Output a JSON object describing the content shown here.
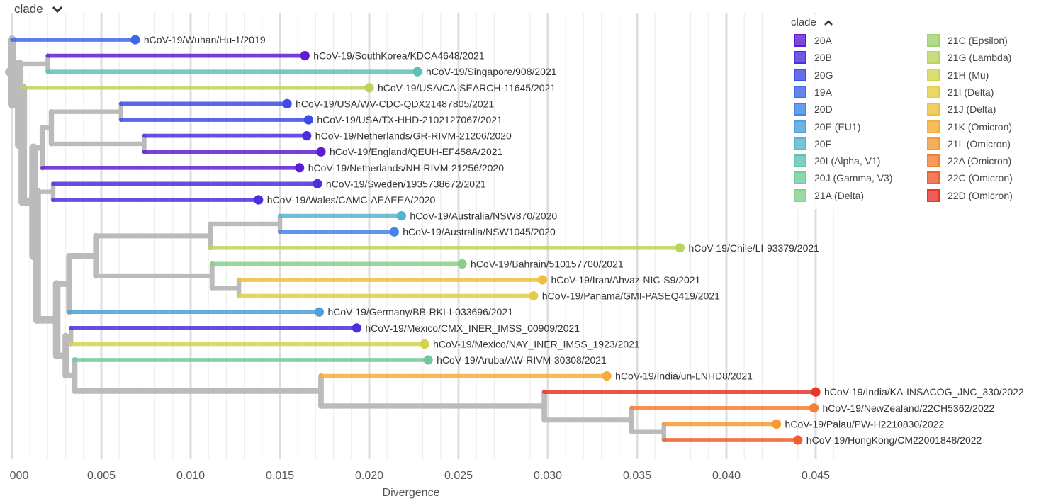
{
  "header": {
    "label": "clade",
    "icon": "chevron-down-icon"
  },
  "legend": {
    "title": "clade",
    "icon": "chevron-up-icon",
    "items": [
      {
        "label": "20A",
        "color": "#5E1DD0"
      },
      {
        "label": "20B",
        "color": "#4B2EDE"
      },
      {
        "label": "20G",
        "color": "#3E4BE6"
      },
      {
        "label": "19A",
        "color": "#3F67E8"
      },
      {
        "label": "20D",
        "color": "#4484E8"
      },
      {
        "label": "20E (EU1)",
        "color": "#4CA0DB"
      },
      {
        "label": "20F",
        "color": "#55B5CB"
      },
      {
        "label": "20I (Alpha, V1)",
        "color": "#62C0B2"
      },
      {
        "label": "20J (Gamma, V3)",
        "color": "#74C89E"
      },
      {
        "label": "21A (Delta)",
        "color": "#88CE88"
      },
      {
        "label": "21C (Epsilon)",
        "color": "#A0D26F"
      },
      {
        "label": "21G (Lambda)",
        "color": "#BAD55E"
      },
      {
        "label": "21H (Mu)",
        "color": "#D1D44F"
      },
      {
        "label": "21I (Delta)",
        "color": "#E4CD45"
      },
      {
        "label": "21J (Delta)",
        "color": "#EFC03E"
      },
      {
        "label": "21K (Omicron)",
        "color": "#F4AE39"
      },
      {
        "label": "21L (Omicron)",
        "color": "#F59A36"
      },
      {
        "label": "22A (Omicron)",
        "color": "#F47F33"
      },
      {
        "label": "22C (Omicron)",
        "color": "#F05D2F"
      },
      {
        "label": "22D (Omicron)",
        "color": "#E8352A"
      }
    ]
  },
  "chart_data": {
    "type": "phylogenetic-tree",
    "xlabel": "Divergence",
    "x_ticks": [
      "000",
      "0.005",
      "0.010",
      "0.015",
      "0.020",
      "0.025",
      "0.030",
      "0.035",
      "0.040",
      "0.045"
    ],
    "x_tick_values": [
      0,
      0.005,
      0.01,
      0.015,
      0.02,
      0.025,
      0.03,
      0.035,
      0.04,
      0.045
    ],
    "xlim": [
      0,
      0.046
    ],
    "grid": "vertical",
    "legend_position": "top-right",
    "tips": [
      {
        "name": "hCoV-19/Wuhan/Hu-1/2019",
        "divergence": 0.0069,
        "clade": "19A"
      },
      {
        "name": "hCoV-19/SouthKorea/KDCA4648/2021",
        "divergence": 0.0164,
        "clade": "20A"
      },
      {
        "name": "hCoV-19/Singapore/908/2021",
        "divergence": 0.0227,
        "clade": "20I (Alpha, V1)"
      },
      {
        "name": "hCoV-19/USA/CA-SEARCH-11645/2021",
        "divergence": 0.02,
        "clade": "21G (Lambda)"
      },
      {
        "name": "hCoV-19/USA/WV-CDC-QDX21487805/2021",
        "divergence": 0.0154,
        "clade": "20G"
      },
      {
        "name": "hCoV-19/USA/TX-HHD-2102127067/2021",
        "divergence": 0.0166,
        "clade": "20G"
      },
      {
        "name": "hCoV-19/Netherlands/GR-RIVM-21206/2020",
        "divergence": 0.0165,
        "clade": "20B"
      },
      {
        "name": "hCoV-19/England/QEUH-EF458A/2021",
        "divergence": 0.0173,
        "clade": "20A"
      },
      {
        "name": "hCoV-19/Netherlands/NH-RIVM-21256/2020",
        "divergence": 0.0161,
        "clade": "20A"
      },
      {
        "name": "hCoV-19/Sweden/1935738672/2021",
        "divergence": 0.0171,
        "clade": "20B"
      },
      {
        "name": "hCoV-19/Wales/CAMC-AEAEEA/2020",
        "divergence": 0.0138,
        "clade": "20B"
      },
      {
        "name": "hCoV-19/Australia/NSW870/2020",
        "divergence": 0.0218,
        "clade": "20F"
      },
      {
        "name": "hCoV-19/Australia/NSW1045/2020",
        "divergence": 0.0214,
        "clade": "20D"
      },
      {
        "name": "hCoV-19/Chile/LI-93379/2021",
        "divergence": 0.0374,
        "clade": "21G (Lambda)"
      },
      {
        "name": "hCoV-19/Bahrain/510157700/2021",
        "divergence": 0.0252,
        "clade": "21A (Delta)"
      },
      {
        "name": "hCoV-19/Iran/Ahvaz-NIC-S9/2021",
        "divergence": 0.0297,
        "clade": "21J (Delta)"
      },
      {
        "name": "hCoV-19/Panama/GMI-PASEQ419/2021",
        "divergence": 0.0292,
        "clade": "21I (Delta)"
      },
      {
        "name": "hCoV-19/Germany/BB-RKI-I-033696/2021",
        "divergence": 0.0172,
        "clade": "20E (EU1)"
      },
      {
        "name": "hCoV-19/Mexico/CMX_INER_IMSS_00909/2021",
        "divergence": 0.0193,
        "clade": "20B"
      },
      {
        "name": "hCoV-19/Mexico/NAY_INER_IMSS_1923/2021",
        "divergence": 0.0231,
        "clade": "21H (Mu)"
      },
      {
        "name": "hCoV-19/Aruba/AW-RIVM-30308/2021",
        "divergence": 0.0233,
        "clade": "20J (Gamma, V3)"
      },
      {
        "name": "hCoV-19/India/un-LNHD8/2021",
        "divergence": 0.0333,
        "clade": "21K (Omicron)"
      },
      {
        "name": "hCoV-19/India/KA-INSACOG_JNC_330/2022",
        "divergence": 0.045,
        "clade": "22D (Omicron)"
      },
      {
        "name": "hCoV-19/NewZealand/22CH5362/2022",
        "divergence": 0.0449,
        "clade": "22A (Omicron)"
      },
      {
        "name": "hCoV-19/Palau/PW-H2210830/2022",
        "divergence": 0.0428,
        "clade": "21L (Omicron)"
      },
      {
        "name": "hCoV-19/HongKong/CM22001848/2022",
        "divergence": 0.044,
        "clade": "22C (Omicron)"
      }
    ],
    "internal_nodes": [
      {
        "id": "n_sk_sg",
        "divergence": 0.002,
        "children": [
          "hCoV-19/SouthKorea/KDCA4648/2021",
          "hCoV-19/Singapore/908/2021"
        ]
      },
      {
        "id": "n_wv_tx",
        "divergence": 0.0061,
        "children": [
          "hCoV-19/USA/WV-CDC-QDX21487805/2021",
          "hCoV-19/USA/TX-HHD-2102127067/2021"
        ]
      },
      {
        "id": "n_nl_en",
        "divergence": 0.0074,
        "children": [
          "hCoV-19/Netherlands/GR-RIVM-21206/2020",
          "hCoV-19/England/QEUH-EF458A/2021"
        ]
      },
      {
        "id": "n_us_block",
        "divergence": 0.0022,
        "children": [
          "n_wv_tx",
          "n_nl_en"
        ]
      },
      {
        "id": "n_us_nl",
        "divergence": 0.0017,
        "children": [
          "n_us_block",
          "hCoV-19/Netherlands/NH-RIVM-21256/2020"
        ]
      },
      {
        "id": "n_se_wa",
        "divergence": 0.0023,
        "children": [
          "hCoV-19/Sweden/1935738672/2021",
          "hCoV-19/Wales/CAMC-AEAEEA/2020"
        ]
      },
      {
        "id": "n_au",
        "divergence": 0.015,
        "children": [
          "hCoV-19/Australia/NSW870/2020",
          "hCoV-19/Australia/NSW1045/2020"
        ]
      },
      {
        "id": "n_au_cl",
        "divergence": 0.0111,
        "children": [
          "n_au",
          "hCoV-19/Chile/LI-93379/2021"
        ]
      },
      {
        "id": "n_ir_pa",
        "divergence": 0.0127,
        "children": [
          "hCoV-19/Iran/Ahvaz-NIC-S9/2021",
          "hCoV-19/Panama/GMI-PASEQ419/2021"
        ]
      },
      {
        "id": "n_bh_ir",
        "divergence": 0.0112,
        "children": [
          "hCoV-19/Bahrain/510157700/2021",
          "n_ir_pa"
        ]
      },
      {
        "id": "n_mid",
        "divergence": 0.0047,
        "children": [
          "n_au_cl",
          "n_bh_ir"
        ]
      },
      {
        "id": "n_mid_de",
        "divergence": 0.0032,
        "children": [
          "n_mid",
          "hCoV-19/Germany/BB-RKI-I-033696/2021"
        ]
      },
      {
        "id": "n_mx",
        "divergence": 0.0033,
        "children": [
          "hCoV-19/Mexico/CMX_INER_IMSS_00909/2021",
          "hCoV-19/Mexico/NAY_INER_IMSS_1923/2021"
        ]
      },
      {
        "id": "n_hk_pa",
        "divergence": 0.0365,
        "children": [
          "hCoV-19/Palau/PW-H2210830/2022",
          "hCoV-19/HongKong/CM22001848/2022"
        ]
      },
      {
        "id": "n_nz_hk",
        "divergence": 0.0347,
        "children": [
          "hCoV-19/NewZealand/22CH5362/2022",
          "n_hk_pa"
        ]
      },
      {
        "id": "n_ba2",
        "divergence": 0.0298,
        "children": [
          "hCoV-19/India/KA-INSACOG_JNC_330/2022",
          "n_nz_hk"
        ]
      },
      {
        "id": "n_omi",
        "divergence": 0.0173,
        "children": [
          "hCoV-19/India/un-LNHD8/2021",
          "n_ba2"
        ]
      },
      {
        "id": "n_aru_omi",
        "divergence": 0.0035,
        "children": [
          "hCoV-19/Aruba/AW-RIVM-30308/2021",
          "n_omi"
        ]
      },
      {
        "id": "n_mx_aru",
        "divergence": 0.003,
        "children": [
          "n_mx",
          "n_aru_omi"
        ]
      },
      {
        "id": "n_de_mx",
        "divergence": 0.0025,
        "children": [
          "n_mid_de",
          "n_mx_aru"
        ]
      },
      {
        "id": "n_sw_de",
        "divergence": 0.0014,
        "children": [
          "n_se_wa",
          "n_de_mx"
        ]
      },
      {
        "id": "n_big",
        "divergence": 0.0012,
        "children": [
          "n_us_nl",
          "n_sw_de"
        ]
      },
      {
        "id": "n_ca_big",
        "divergence": 0.0006,
        "children": [
          "hCoV-19/USA/CA-SEARCH-11645/2021",
          "n_big"
        ]
      },
      {
        "id": "n_kor_ca",
        "divergence": 0.0004,
        "children": [
          "n_sk_sg",
          "n_ca_big"
        ]
      },
      {
        "id": "root",
        "divergence": 0.0,
        "children": [
          "hCoV-19/Wuhan/Hu-1/2019",
          "n_kor_ca"
        ]
      }
    ]
  }
}
